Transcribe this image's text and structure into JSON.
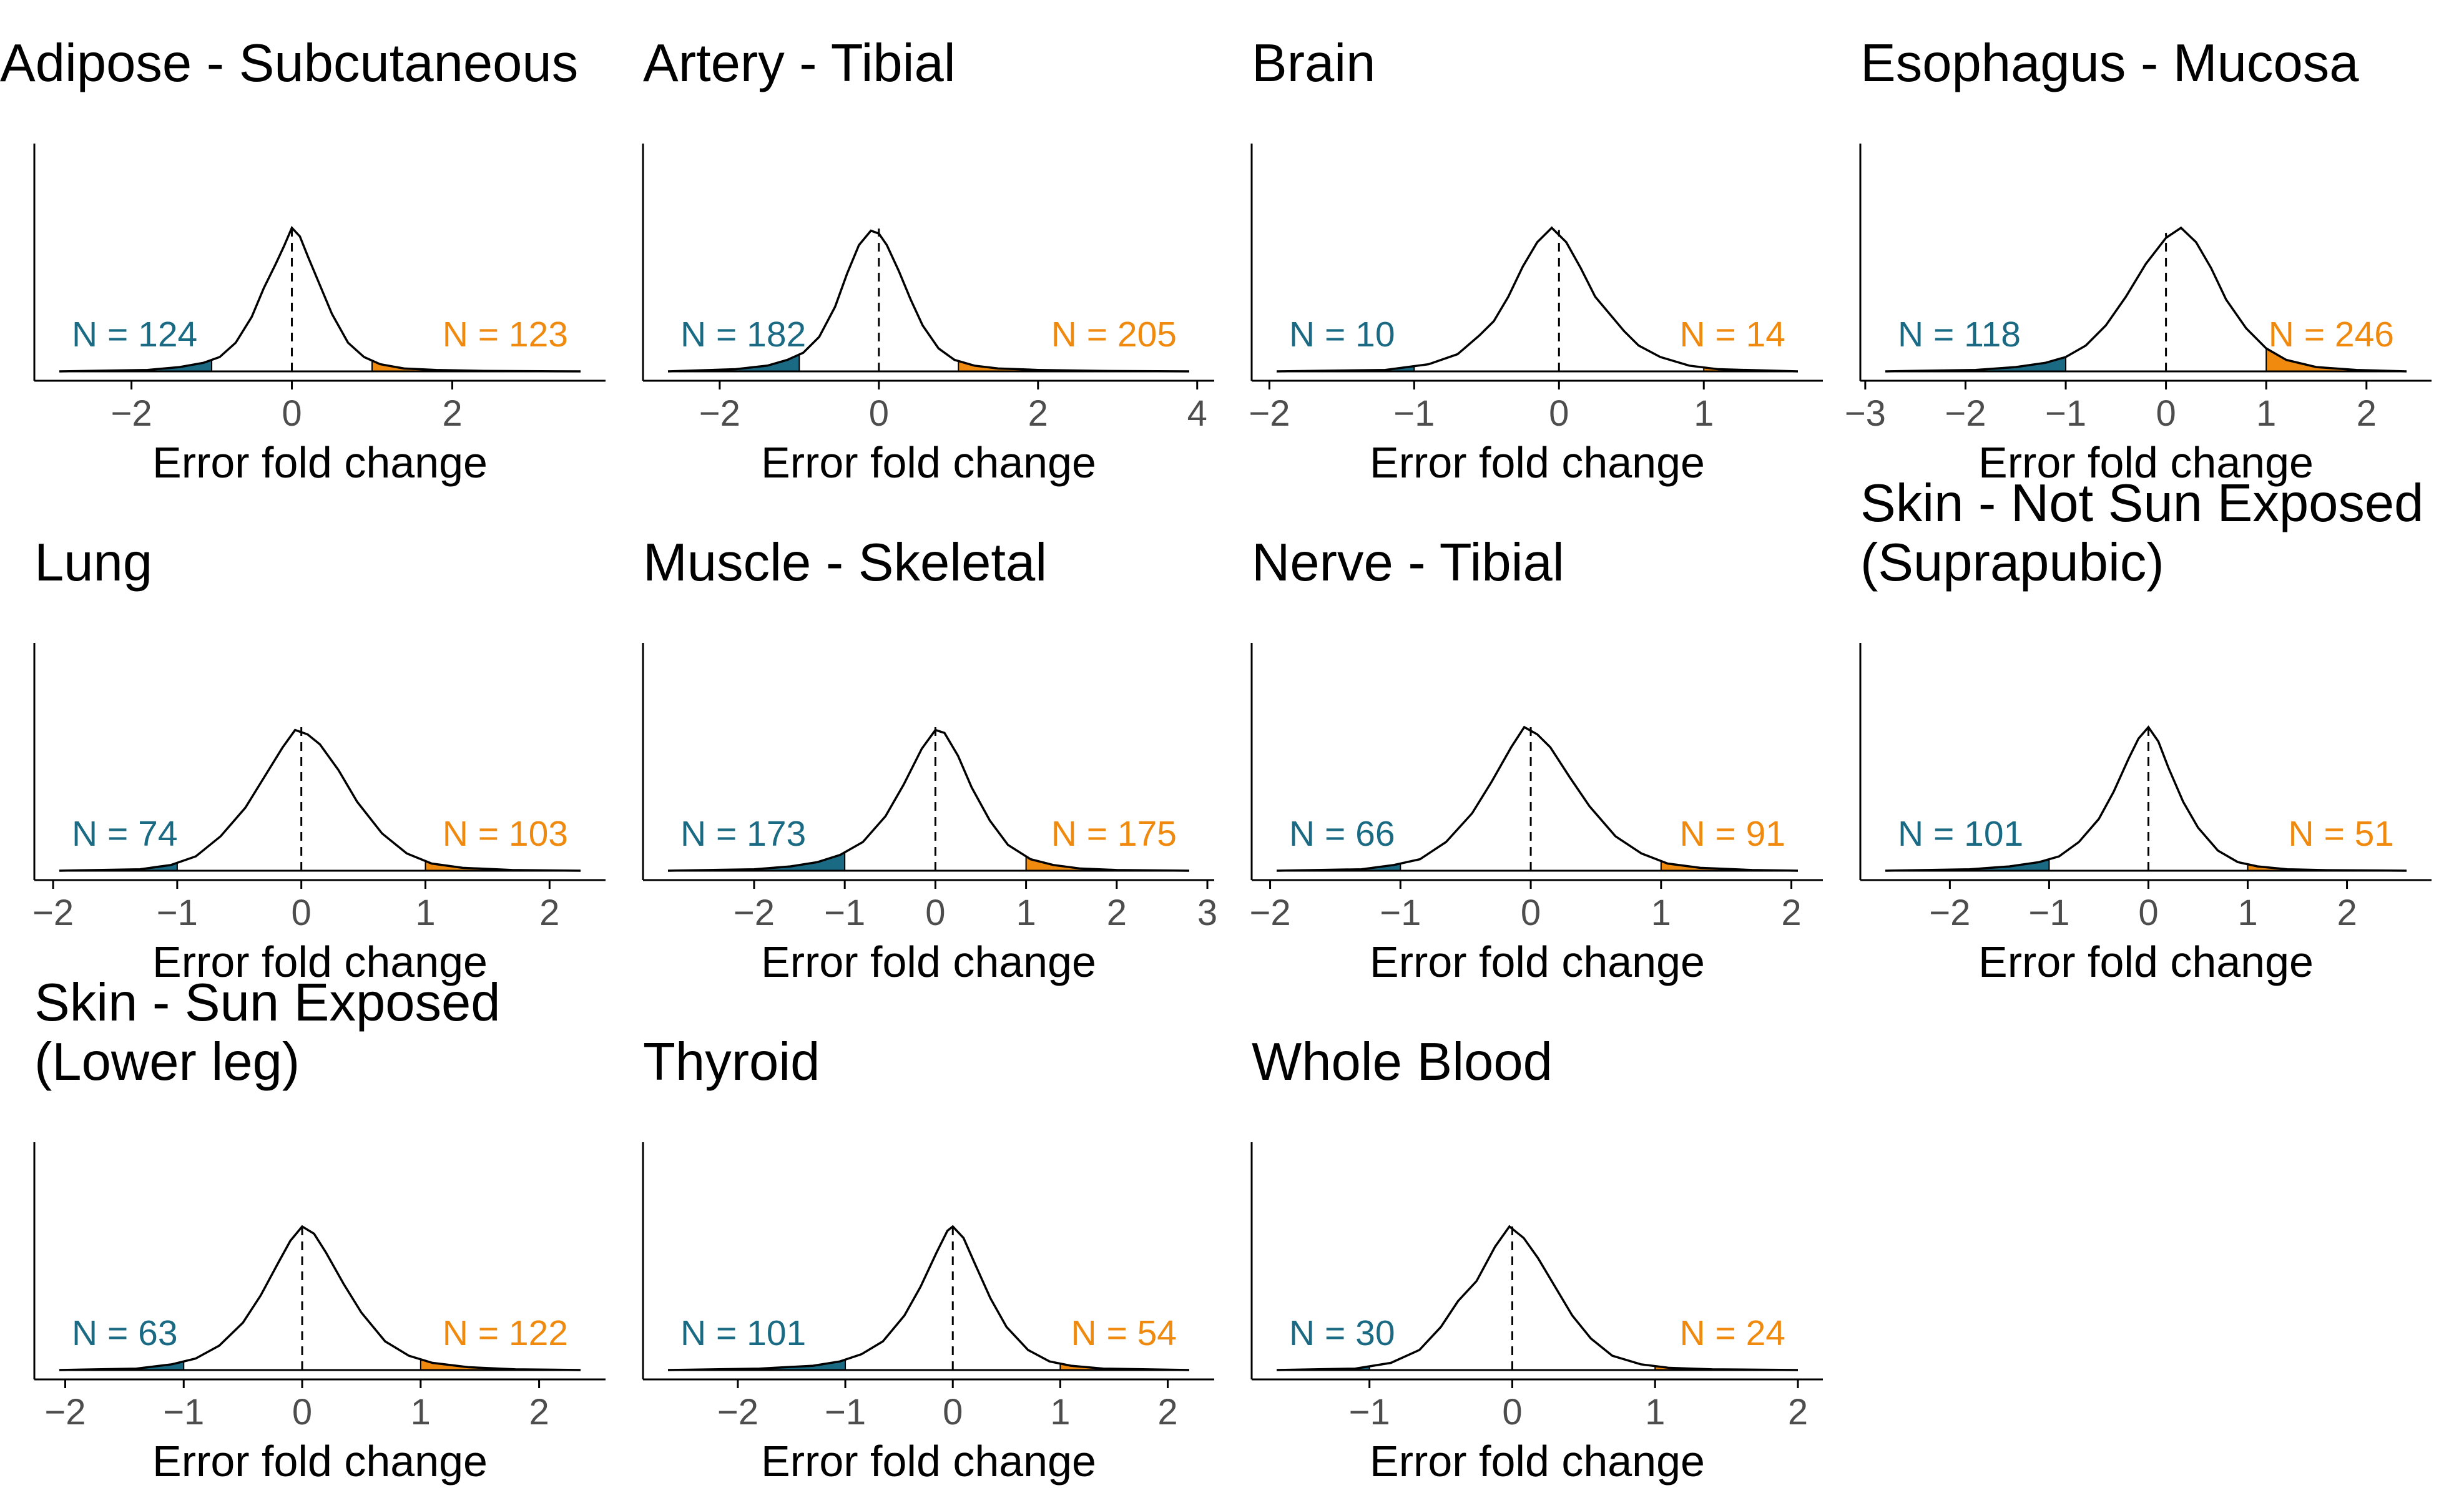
{
  "colors": {
    "left_tail": "#1b6a84",
    "right_tail": "#f08a0f",
    "line": "#000000",
    "tick_text": "#4d4d4d"
  },
  "chart_data": [
    {
      "type": "area",
      "title": [
        "Adipose - Subcutaneous"
      ],
      "xlabel": "Error fold change",
      "x_ticks": [
        -2,
        0,
        2
      ],
      "xlim": [
        -2.9,
        3.6
      ],
      "curve": {
        "x": [
          -2.9,
          -1.8,
          -1.4,
          -1.1,
          -0.9,
          -0.7,
          -0.5,
          -0.35,
          -0.2,
          -0.1,
          0.0,
          0.1,
          0.2,
          0.35,
          0.5,
          0.7,
          0.9,
          1.1,
          1.4,
          1.8,
          2.4,
          3.6
        ],
        "y": [
          0,
          0.01,
          0.03,
          0.06,
          0.1,
          0.2,
          0.38,
          0.58,
          0.75,
          0.87,
          1.0,
          0.94,
          0.8,
          0.6,
          0.4,
          0.2,
          0.1,
          0.05,
          0.02,
          0.01,
          0.003,
          0
        ]
      },
      "left_count": "N = 124",
      "right_count": "N = 123"
    },
    {
      "type": "area",
      "title": [
        "Artery - Tibial"
      ],
      "xlabel": "Error fold change",
      "x_ticks": [
        -2,
        0,
        2,
        4
      ],
      "xlim": [
        -2.65,
        3.9
      ],
      "curve": {
        "x": [
          -2.65,
          -1.8,
          -1.4,
          -1.15,
          -0.95,
          -0.75,
          -0.55,
          -0.4,
          -0.25,
          -0.1,
          0.0,
          0.1,
          0.25,
          0.4,
          0.55,
          0.75,
          0.95,
          1.2,
          1.5,
          2.0,
          2.8,
          3.9
        ],
        "y": [
          0,
          0.015,
          0.04,
          0.08,
          0.13,
          0.24,
          0.45,
          0.68,
          0.88,
          0.98,
          0.96,
          0.88,
          0.7,
          0.5,
          0.32,
          0.16,
          0.08,
          0.04,
          0.02,
          0.01,
          0.003,
          0
        ]
      },
      "left_count": "N = 182",
      "right_count": "N = 205"
    },
    {
      "type": "area",
      "title": [
        "Brain"
      ],
      "xlabel": "Error fold change",
      "x_ticks": [
        -2,
        -1,
        0,
        1
      ],
      "xlim": [
        -1.95,
        1.65
      ],
      "curve": {
        "x": [
          -1.95,
          -1.2,
          -0.9,
          -0.7,
          -0.55,
          -0.45,
          -0.35,
          -0.25,
          -0.15,
          -0.05,
          0.05,
          0.15,
          0.25,
          0.35,
          0.45,
          0.55,
          0.7,
          0.9,
          1.1,
          1.65
        ],
        "y": [
          0,
          0.01,
          0.05,
          0.12,
          0.25,
          0.35,
          0.52,
          0.73,
          0.9,
          1.0,
          0.9,
          0.72,
          0.52,
          0.4,
          0.28,
          0.18,
          0.1,
          0.04,
          0.015,
          0
        ]
      },
      "left_count": "N = 10",
      "right_count": "N = 14"
    },
    {
      "type": "area",
      "title": [
        "Esophagus - Mucosa"
      ],
      "xlabel": "Error fold change",
      "x_ticks": [
        -3,
        -2,
        -1,
        0,
        1,
        2
      ],
      "xlim": [
        -2.8,
        2.4
      ],
      "curve": {
        "x": [
          -2.8,
          -1.9,
          -1.5,
          -1.2,
          -1.0,
          -0.8,
          -0.6,
          -0.4,
          -0.2,
          0.0,
          0.15,
          0.3,
          0.45,
          0.6,
          0.8,
          1.0,
          1.2,
          1.5,
          1.9,
          2.4
        ],
        "y": [
          0,
          0.01,
          0.03,
          0.06,
          0.1,
          0.18,
          0.32,
          0.52,
          0.75,
          0.93,
          1.0,
          0.9,
          0.72,
          0.5,
          0.3,
          0.16,
          0.08,
          0.03,
          0.01,
          0
        ]
      },
      "left_count": "N = 118",
      "right_count": "N = 246"
    },
    {
      "type": "area",
      "title": [
        "Lung"
      ],
      "xlabel": "Error fold change",
      "x_ticks": [
        -2,
        -1,
        0,
        1,
        2
      ],
      "xlim": [
        -1.95,
        2.25
      ],
      "curve": {
        "x": [
          -1.95,
          -1.3,
          -1.05,
          -0.85,
          -0.65,
          -0.45,
          -0.3,
          -0.15,
          -0.05,
          0.05,
          0.15,
          0.3,
          0.45,
          0.65,
          0.85,
          1.05,
          1.3,
          1.7,
          2.25
        ],
        "y": [
          0,
          0.01,
          0.04,
          0.1,
          0.24,
          0.44,
          0.65,
          0.86,
          0.98,
          0.95,
          0.88,
          0.7,
          0.48,
          0.26,
          0.12,
          0.05,
          0.02,
          0.005,
          0
        ]
      },
      "left_count": "N = 74",
      "right_count": "N = 103"
    },
    {
      "type": "area",
      "title": [
        "Muscle - Skeletal"
      ],
      "xlabel": "Error fold change",
      "x_ticks": [
        -2,
        -1,
        0,
        1,
        2,
        3
      ],
      "xlim": [
        -2.95,
        2.8
      ],
      "curve": {
        "x": [
          -2.95,
          -2.0,
          -1.6,
          -1.3,
          -1.05,
          -0.8,
          -0.55,
          -0.35,
          -0.15,
          0.0,
          0.1,
          0.25,
          0.4,
          0.6,
          0.8,
          1.05,
          1.3,
          1.6,
          2.0,
          2.8
        ],
        "y": [
          0,
          0.01,
          0.03,
          0.06,
          0.11,
          0.2,
          0.38,
          0.6,
          0.85,
          0.98,
          0.96,
          0.8,
          0.58,
          0.35,
          0.18,
          0.08,
          0.04,
          0.015,
          0.005,
          0
        ]
      },
      "left_count": "N = 173",
      "right_count": "N = 175"
    },
    {
      "type": "area",
      "title": [
        "Nerve - Tibial"
      ],
      "xlabel": "Error fold change",
      "x_ticks": [
        -2,
        -1,
        0,
        1,
        2
      ],
      "xlim": [
        -1.95,
        2.05
      ],
      "curve": {
        "x": [
          -1.95,
          -1.3,
          -1.05,
          -0.85,
          -0.65,
          -0.45,
          -0.3,
          -0.15,
          -0.05,
          0.05,
          0.15,
          0.3,
          0.45,
          0.65,
          0.85,
          1.05,
          1.3,
          1.7,
          2.05
        ],
        "y": [
          0,
          0.01,
          0.04,
          0.08,
          0.2,
          0.4,
          0.62,
          0.86,
          1.0,
          0.95,
          0.86,
          0.65,
          0.45,
          0.24,
          0.12,
          0.05,
          0.02,
          0.005,
          0
        ]
      },
      "left_count": "N = 66",
      "right_count": "N = 91"
    },
    {
      "type": "area",
      "title": [
        "Skin - Not Sun Exposed",
        "(Suprapubic)"
      ],
      "xlabel": "Error fold change",
      "x_ticks": [
        -2,
        -1,
        0,
        1,
        2
      ],
      "xlim": [
        -2.65,
        2.6
      ],
      "curve": {
        "x": [
          -2.65,
          -1.8,
          -1.4,
          -1.1,
          -0.9,
          -0.7,
          -0.5,
          -0.35,
          -0.2,
          -0.1,
          0.0,
          0.1,
          0.2,
          0.35,
          0.5,
          0.7,
          0.9,
          1.1,
          1.4,
          1.8,
          2.6
        ],
        "y": [
          0,
          0.01,
          0.03,
          0.06,
          0.1,
          0.2,
          0.36,
          0.55,
          0.78,
          0.92,
          1.0,
          0.9,
          0.72,
          0.48,
          0.3,
          0.14,
          0.06,
          0.03,
          0.01,
          0.004,
          0
        ]
      },
      "left_count": "N = 101",
      "right_count": "N = 51"
    },
    {
      "type": "area",
      "title": [
        "Skin - Sun Exposed",
        "(Lower leg)"
      ],
      "xlabel": "Error fold change",
      "x_ticks": [
        -2,
        -1,
        0,
        1,
        2
      ],
      "xlim": [
        -2.05,
        2.35
      ],
      "curve": {
        "x": [
          -2.05,
          -1.4,
          -1.1,
          -0.9,
          -0.7,
          -0.5,
          -0.35,
          -0.2,
          -0.1,
          0.0,
          0.1,
          0.2,
          0.35,
          0.5,
          0.7,
          0.9,
          1.1,
          1.4,
          1.8,
          2.35
        ],
        "y": [
          0,
          0.01,
          0.04,
          0.08,
          0.17,
          0.33,
          0.52,
          0.75,
          0.9,
          1.0,
          0.95,
          0.82,
          0.6,
          0.4,
          0.2,
          0.1,
          0.05,
          0.02,
          0.005,
          0
        ]
      },
      "left_count": "N = 63",
      "right_count": "N = 122"
    },
    {
      "type": "area",
      "title": [
        "Thyroid"
      ],
      "xlabel": "Error fold change",
      "x_ticks": [
        -2,
        -1,
        0,
        1,
        2
      ],
      "xlim": [
        -2.65,
        2.2
      ],
      "curve": {
        "x": [
          -2.65,
          -1.8,
          -1.3,
          -1.05,
          -0.85,
          -0.65,
          -0.45,
          -0.3,
          -0.15,
          -0.05,
          0.0,
          0.1,
          0.2,
          0.35,
          0.5,
          0.7,
          0.9,
          1.1,
          1.4,
          2.2
        ],
        "y": [
          0,
          0.01,
          0.03,
          0.06,
          0.11,
          0.2,
          0.38,
          0.58,
          0.82,
          0.97,
          1.0,
          0.92,
          0.75,
          0.5,
          0.3,
          0.14,
          0.06,
          0.03,
          0.01,
          0
        ]
      },
      "left_count": "N = 101",
      "right_count": "N = 54"
    },
    {
      "type": "area",
      "title": [
        "Whole Blood"
      ],
      "xlabel": "Error fold change",
      "x_ticks": [
        -1,
        0,
        1,
        2
      ],
      "xlim": [
        -1.65,
        2.0
      ],
      "curve": {
        "x": [
          -1.65,
          -1.1,
          -0.85,
          -0.65,
          -0.5,
          -0.38,
          -0.25,
          -0.12,
          -0.02,
          0.08,
          0.18,
          0.3,
          0.42,
          0.55,
          0.7,
          0.9,
          1.1,
          1.4,
          2.0
        ],
        "y": [
          0,
          0.01,
          0.05,
          0.14,
          0.3,
          0.48,
          0.62,
          0.86,
          1.0,
          0.92,
          0.78,
          0.58,
          0.38,
          0.22,
          0.1,
          0.04,
          0.015,
          0.005,
          0
        ]
      },
      "left_count": "N = 30",
      "right_count": "N = 24"
    }
  ]
}
